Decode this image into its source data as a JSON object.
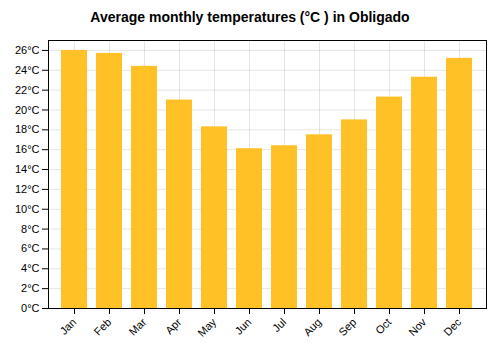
{
  "chart_data": {
    "type": "bar",
    "title": "Average monthly temperatures (°C ) in Obligado",
    "categories": [
      "Jan",
      "Feb",
      "Mar",
      "Apr",
      "May",
      "Jun",
      "Jul",
      "Aug",
      "Sep",
      "Oct",
      "Nov",
      "Dec"
    ],
    "values": [
      26.0,
      25.7,
      24.4,
      21.0,
      18.3,
      16.1,
      16.4,
      17.5,
      19.0,
      21.3,
      23.3,
      25.2
    ],
    "color": "#FFC125",
    "ylim": [
      0,
      27
    ],
    "yticks": [
      {
        "value": 0,
        "label": "0°C"
      },
      {
        "value": 2,
        "label": "2°C"
      },
      {
        "value": 4,
        "label": "4°C"
      },
      {
        "value": 6,
        "label": "6°C"
      },
      {
        "value": 8,
        "label": "8°C"
      },
      {
        "value": 10,
        "label": "10°C"
      },
      {
        "value": 12,
        "label": "12°C"
      },
      {
        "value": 14,
        "label": "14°C"
      },
      {
        "value": 16,
        "label": "16°C"
      },
      {
        "value": 18,
        "label": "18°C"
      },
      {
        "value": 20,
        "label": "20°C"
      },
      {
        "value": 22,
        "label": "22°C"
      },
      {
        "value": 24,
        "label": "24°C"
      },
      {
        "value": 26,
        "label": "26°C"
      }
    ],
    "grid": true
  }
}
